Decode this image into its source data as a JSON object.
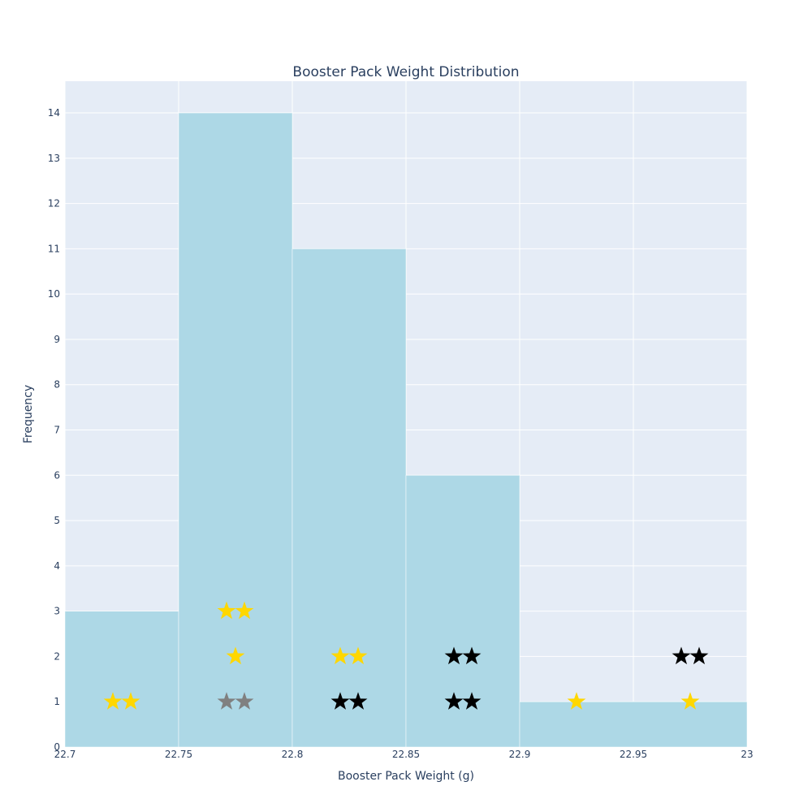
{
  "chart_data": {
    "type": "bar",
    "title": "Booster Pack Weight Distribution",
    "xlabel": "Booster Pack Weight (g)",
    "ylabel": "Frequency",
    "xlim": [
      22.7,
      23.0
    ],
    "ylim": [
      0,
      14.7
    ],
    "x_ticks": [
      "22.7",
      "22.75",
      "22.8",
      "22.85",
      "22.9",
      "22.95",
      "23"
    ],
    "y_ticks": [
      "0",
      "1",
      "2",
      "3",
      "4",
      "5",
      "6",
      "7",
      "8",
      "9",
      "10",
      "11",
      "12",
      "13",
      "14"
    ],
    "grid": true,
    "bins": [
      {
        "start": 22.7,
        "end": 22.75,
        "count": 3
      },
      {
        "start": 22.75,
        "end": 22.8,
        "count": 14
      },
      {
        "start": 22.8,
        "end": 22.85,
        "count": 11
      },
      {
        "start": 22.85,
        "end": 22.9,
        "count": 6
      },
      {
        "start": 22.9,
        "end": 23.0,
        "count": 1
      }
    ],
    "star_markers": [
      {
        "x": 22.725,
        "y": 1,
        "count": 2,
        "color": "#FFD700"
      },
      {
        "x": 22.775,
        "y": 1,
        "count": 2,
        "color": "#808080"
      },
      {
        "x": 22.775,
        "y": 2,
        "count": 1,
        "color": "#FFD700"
      },
      {
        "x": 22.775,
        "y": 3,
        "count": 2,
        "color": "#FFD700"
      },
      {
        "x": 22.825,
        "y": 1,
        "count": 2,
        "color": "#000000"
      },
      {
        "x": 22.825,
        "y": 2,
        "count": 2,
        "color": "#FFD700"
      },
      {
        "x": 22.875,
        "y": 1,
        "count": 2,
        "color": "#000000"
      },
      {
        "x": 22.875,
        "y": 2,
        "count": 2,
        "color": "#000000"
      },
      {
        "x": 22.925,
        "y": 1,
        "count": 1,
        "color": "#FFD700"
      },
      {
        "x": 22.975,
        "y": 1,
        "count": 1,
        "color": "#FFD700"
      },
      {
        "x": 22.975,
        "y": 2,
        "count": 2,
        "color": "#000000"
      }
    ],
    "colors": {
      "bar": "#ADD8E6",
      "plot_bg": "#E5ECF6",
      "grid": "#FFFFFF",
      "text": "#2A3F5F"
    }
  }
}
